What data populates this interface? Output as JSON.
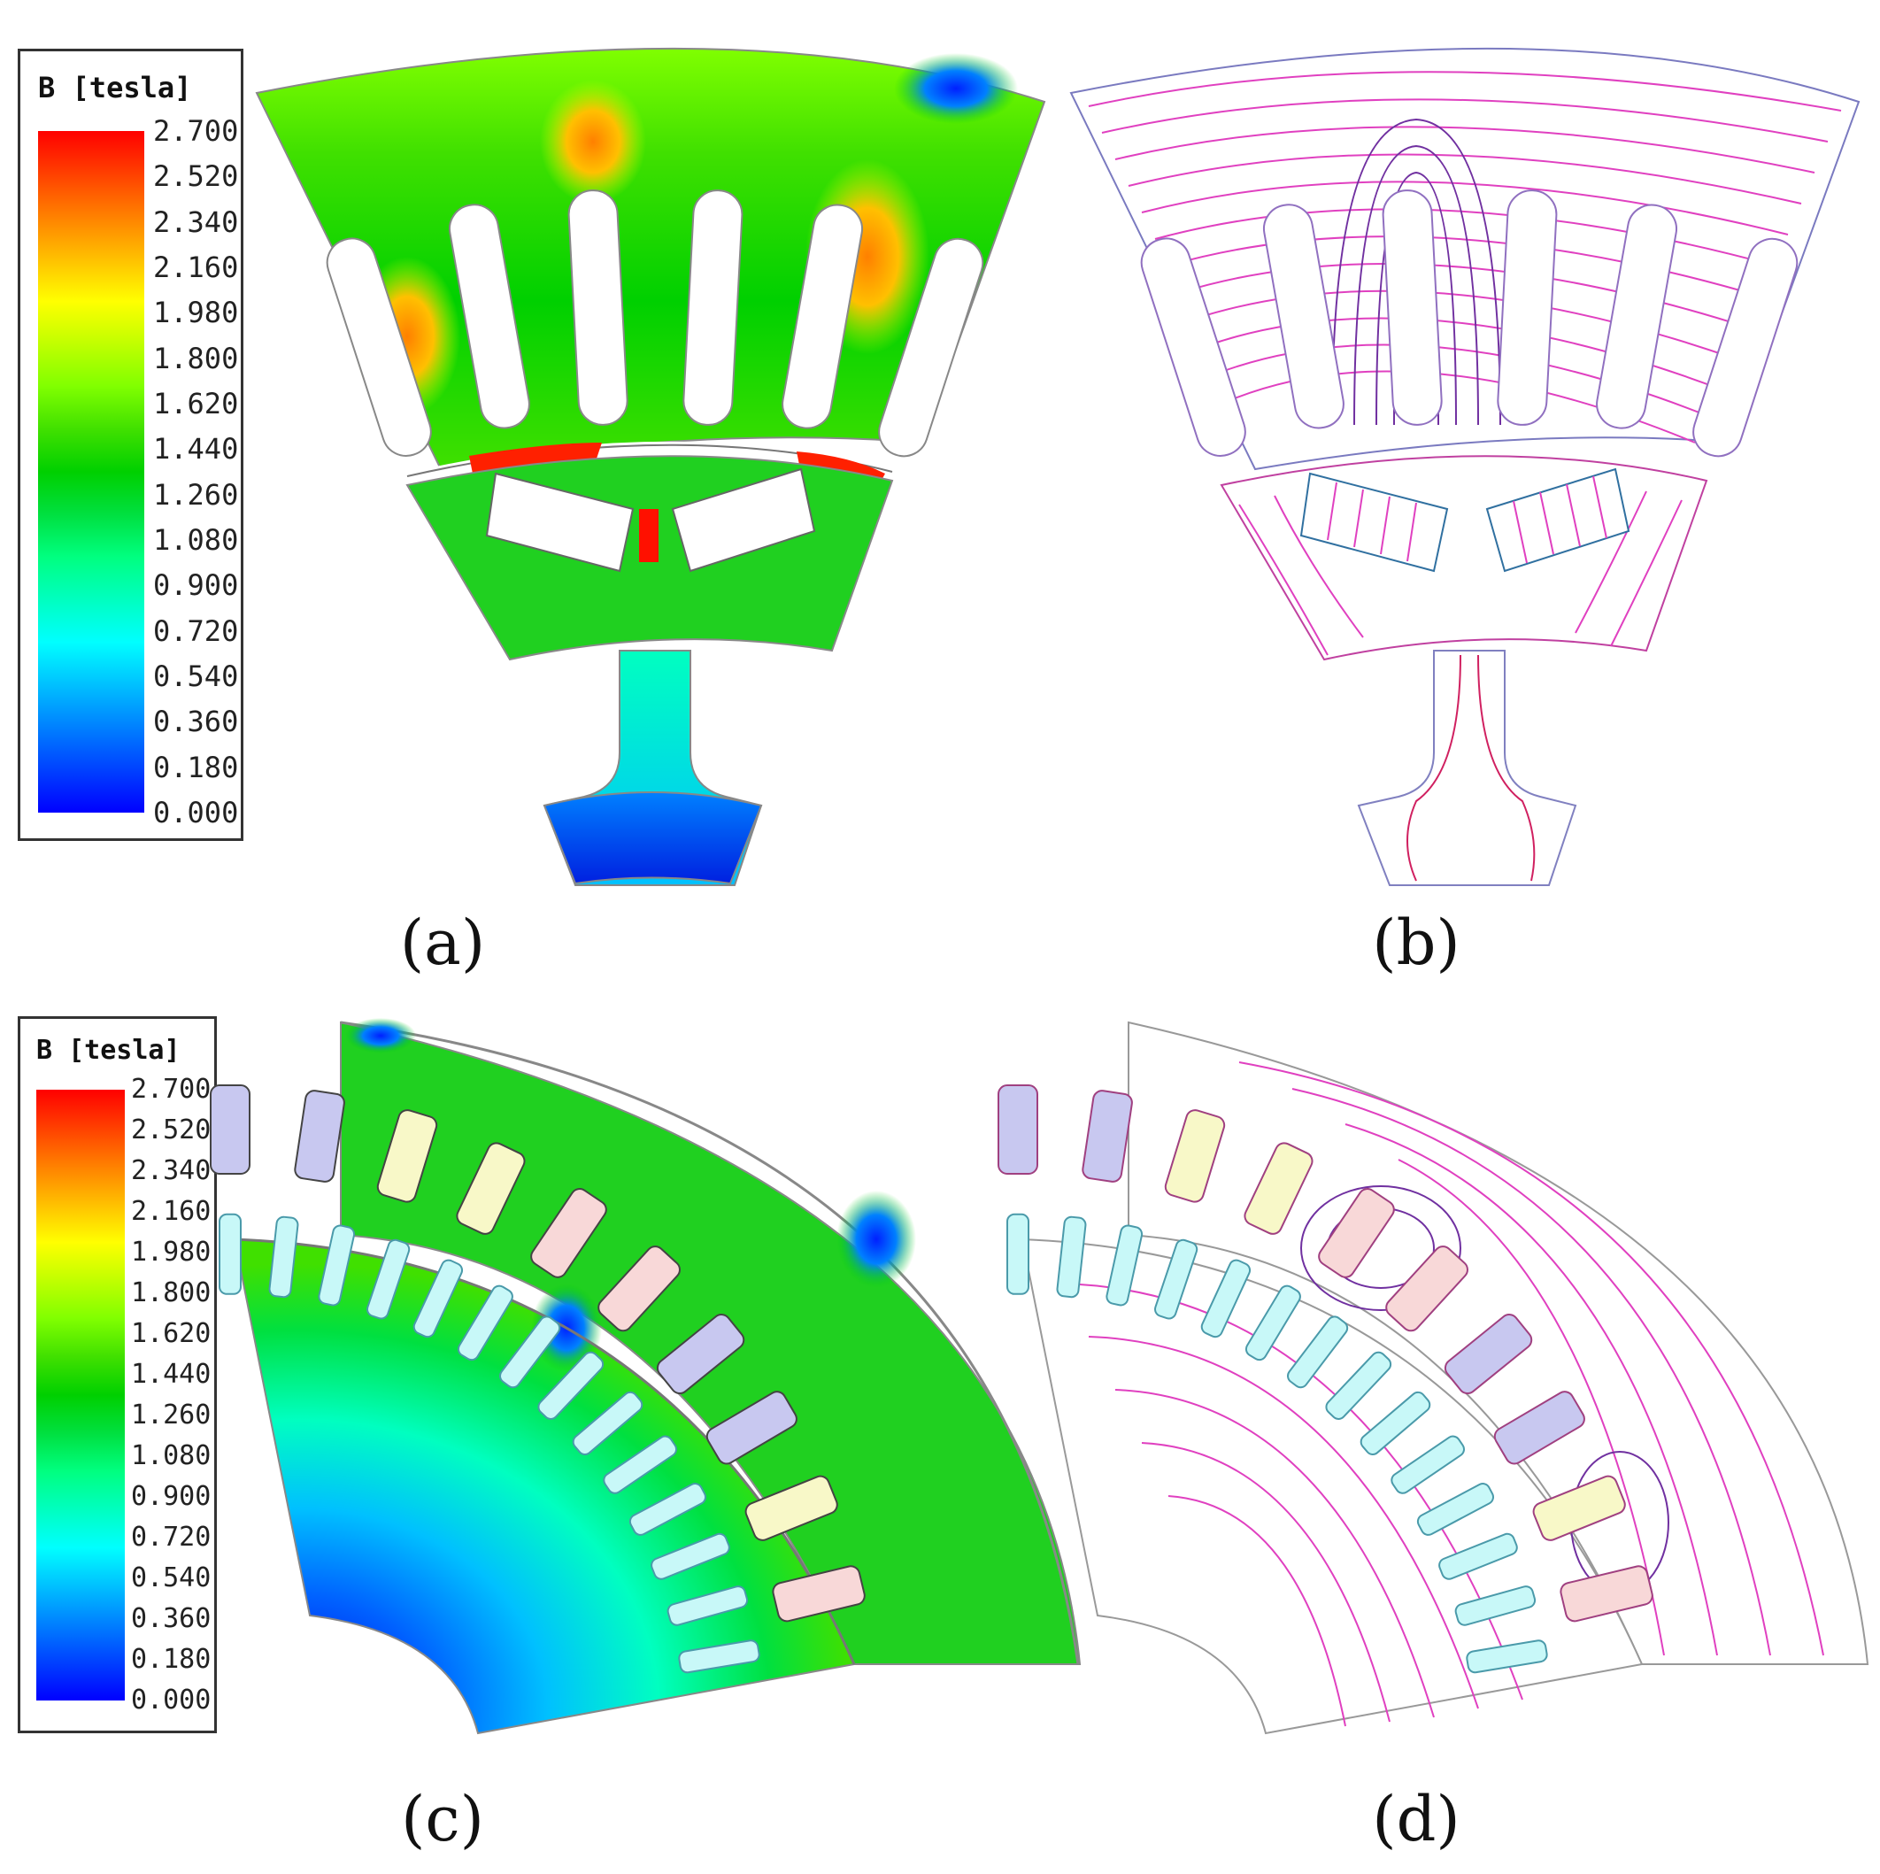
{
  "legend_a": {
    "title": "B [tesla]",
    "values": [
      "2.700",
      "2.520",
      "2.340",
      "2.160",
      "1.980",
      "1.800",
      "1.620",
      "1.440",
      "1.260",
      "1.080",
      "0.900",
      "0.720",
      "0.540",
      "0.360",
      "0.180",
      "0.000"
    ]
  },
  "legend_c": {
    "title": "B [tesla]",
    "values": [
      "2.700",
      "2.520",
      "2.340",
      "2.160",
      "1.980",
      "1.800",
      "1.620",
      "1.440",
      "1.260",
      "1.080",
      "0.900",
      "0.720",
      "0.540",
      "0.360",
      "0.180",
      "0.000"
    ]
  },
  "colormap": [
    "#0000ff",
    "#0040ff",
    "#0080ff",
    "#00c0ff",
    "#00ffff",
    "#00ffc0",
    "#00ff80",
    "#00e040",
    "#00d000",
    "#40e000",
    "#80ff00",
    "#c0ff00",
    "#ffff00",
    "#ffc000",
    "#ff8000",
    "#ff4000",
    "#ff0000"
  ],
  "captions": {
    "a": "(a)",
    "b": "(b)",
    "c": "(c)",
    "d": "(d)"
  },
  "colors": {
    "flux_line_outer": "#e040c0",
    "flux_line_inner": "#7030a0",
    "flux_line_red": "#d02040",
    "slot_blue": "#c8c8f0",
    "slot_pink": "#f8d8d8",
    "slot_yellow": "#f8f8c8",
    "slot_cyan": "#c8f8f8"
  }
}
